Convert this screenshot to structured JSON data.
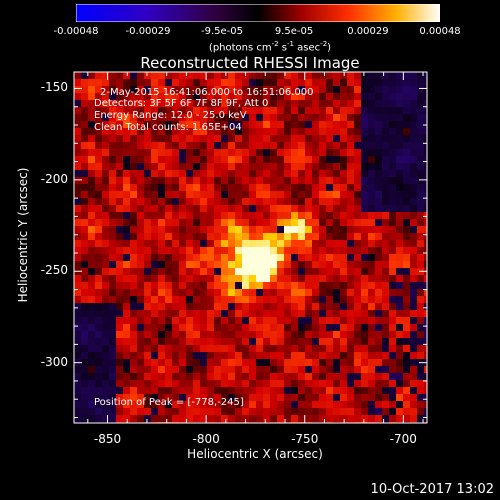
{
  "colorbar": {
    "ticks": [
      "-0.00048",
      "-0.00029",
      "-9.5e-05",
      "9.5e-05",
      "0.00029",
      "0.00048"
    ],
    "units_main": "(photons cm",
    "units_sup1": "-2",
    "units_mid": " s",
    "units_sup2": "-1",
    "units_end": " asec",
    "units_sup3": "-2",
    "units_close": ")"
  },
  "header": {
    "title": "Reconstructed RHESSI Image"
  },
  "info": {
    "time_range": "2-May-2015 16:41:06.000  to  16:51:06.000",
    "detectors": "Detectors: 3F 5F 6F 7F 8F 9F, Att 0",
    "energy": "Energy Range: 12.0 - 25.0 keV",
    "clean": "Clean     Total counts: 1.65E+04",
    "peak": "Position of Peak = [-778,-245]"
  },
  "footer": {
    "date": "10-Oct-2017 13:02"
  },
  "chart_data": {
    "type": "heatmap",
    "title": "Reconstructed RHESSI Image",
    "xlabel": "Heliocentric X (arcsec)",
    "ylabel": "Heliocentric Y (arcsec)",
    "xlim": [
      -867,
      -688
    ],
    "ylim": [
      -333,
      -141
    ],
    "x_ticks": [
      "-850",
      "-800",
      "-750",
      "-700"
    ],
    "x_tick_values": [
      -850,
      -800,
      -750,
      -700
    ],
    "y_ticks": [
      "-150",
      "-200",
      "-250",
      "-300"
    ],
    "y_tick_values": [
      -150,
      -200,
      -250,
      -300
    ],
    "peak": {
      "x": -778,
      "y": -245
    },
    "colorbar_range": [
      -0.00048,
      0.00048
    ],
    "colormap": "red-temperature",
    "colors": {
      "negative": "#2a0a60",
      "zero": "#000000",
      "low": "#8a0000",
      "mid": "#e03000",
      "high": "#ffc000",
      "max": "#ffffff"
    }
  }
}
